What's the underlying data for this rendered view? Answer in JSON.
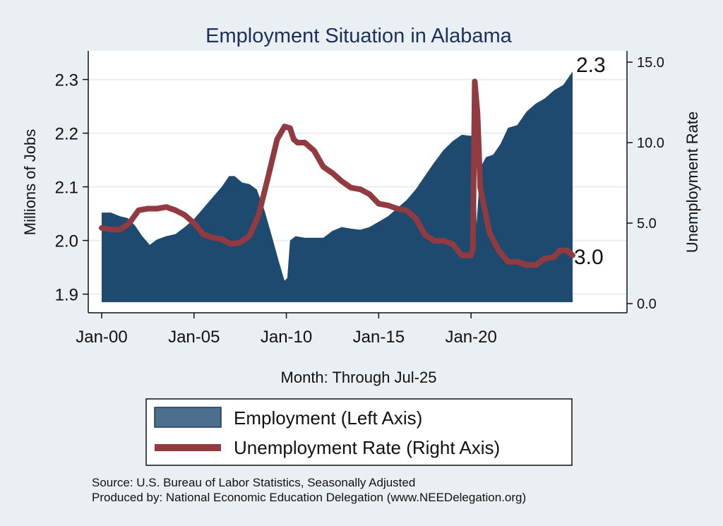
{
  "chart_data": {
    "type": "area+line",
    "title": "Employment Situation in Alabama",
    "xlabel": "Month: Through Jul-25",
    "ylabel_left": "Millions of Jobs",
    "ylabel_right": "Unemployment Rate",
    "x_ticks": [
      "Jan-00",
      "Jan-05",
      "Jan-10",
      "Jan-15",
      "Jan-20"
    ],
    "y_left_ticks": [
      "1.9",
      "2.0",
      "2.1",
      "2.2",
      "2.3"
    ],
    "y_right_ticks": [
      "0.0",
      "5.0",
      "10.0",
      "15.0"
    ],
    "ylim_left": [
      1.885,
      2.335
    ],
    "ylim_right": [
      0,
      15
    ],
    "x_start": 2000.0,
    "x_end": 2025.5,
    "employment_end_label": "2.3",
    "unemployment_end_label": "3.0",
    "legend_position": "bottom",
    "series": [
      {
        "name": "Employment (Left Axis)",
        "axis": "left",
        "kind": "area",
        "color": "#1f4a70",
        "points": [
          [
            2000.0,
            2.052
          ],
          [
            2000.5,
            2.052
          ],
          [
            2001.0,
            2.045
          ],
          [
            2001.4,
            2.042
          ],
          [
            2001.8,
            2.028
          ],
          [
            2002.2,
            2.008
          ],
          [
            2002.6,
            1.992
          ],
          [
            2003.0,
            2.002
          ],
          [
            2003.5,
            2.008
          ],
          [
            2004.0,
            2.012
          ],
          [
            2004.5,
            2.025
          ],
          [
            2005.0,
            2.04
          ],
          [
            2005.5,
            2.06
          ],
          [
            2006.0,
            2.08
          ],
          [
            2006.5,
            2.1
          ],
          [
            2006.9,
            2.12
          ],
          [
            2007.2,
            2.12
          ],
          [
            2007.6,
            2.108
          ],
          [
            2008.0,
            2.105
          ],
          [
            2008.4,
            2.095
          ],
          [
            2008.8,
            2.058
          ],
          [
            2009.2,
            2.01
          ],
          [
            2009.6,
            1.96
          ],
          [
            2009.9,
            1.925
          ],
          [
            2010.05,
            1.93
          ],
          [
            2010.2,
            2.0
          ],
          [
            2010.5,
            2.008
          ],
          [
            2011.0,
            2.005
          ],
          [
            2011.5,
            2.005
          ],
          [
            2012.0,
            2.005
          ],
          [
            2012.5,
            2.018
          ],
          [
            2013.0,
            2.025
          ],
          [
            2013.5,
            2.022
          ],
          [
            2014.0,
            2.02
          ],
          [
            2014.5,
            2.025
          ],
          [
            2015.0,
            2.035
          ],
          [
            2015.5,
            2.045
          ],
          [
            2016.0,
            2.06
          ],
          [
            2016.5,
            2.075
          ],
          [
            2017.0,
            2.095
          ],
          [
            2017.5,
            2.12
          ],
          [
            2018.0,
            2.145
          ],
          [
            2018.5,
            2.168
          ],
          [
            2019.0,
            2.185
          ],
          [
            2019.5,
            2.197
          ],
          [
            2020.0,
            2.195
          ],
          [
            2020.2,
            2.198
          ],
          [
            2020.3,
            2.03
          ],
          [
            2020.5,
            2.135
          ],
          [
            2020.8,
            2.155
          ],
          [
            2021.2,
            2.16
          ],
          [
            2021.6,
            2.18
          ],
          [
            2022.0,
            2.21
          ],
          [
            2022.5,
            2.215
          ],
          [
            2023.0,
            2.24
          ],
          [
            2023.5,
            2.255
          ],
          [
            2024.0,
            2.265
          ],
          [
            2024.5,
            2.28
          ],
          [
            2025.0,
            2.29
          ],
          [
            2025.3,
            2.305
          ],
          [
            2025.5,
            2.315
          ]
        ]
      },
      {
        "name": "Unemployment Rate (Right Axis)",
        "axis": "right",
        "kind": "line",
        "color": "#913a40",
        "points": [
          [
            2000.0,
            4.7
          ],
          [
            2000.5,
            4.6
          ],
          [
            2001.0,
            4.6
          ],
          [
            2001.5,
            5.0
          ],
          [
            2002.0,
            5.8
          ],
          [
            2002.5,
            5.9
          ],
          [
            2003.0,
            5.9
          ],
          [
            2003.5,
            6.0
          ],
          [
            2004.0,
            5.8
          ],
          [
            2004.5,
            5.5
          ],
          [
            2005.0,
            5.0
          ],
          [
            2005.5,
            4.3
          ],
          [
            2006.0,
            4.1
          ],
          [
            2006.5,
            4.0
          ],
          [
            2007.0,
            3.7
          ],
          [
            2007.5,
            3.8
          ],
          [
            2008.0,
            4.2
          ],
          [
            2008.5,
            5.5
          ],
          [
            2009.0,
            7.8
          ],
          [
            2009.5,
            10.2
          ],
          [
            2009.9,
            11.0
          ],
          [
            2010.2,
            10.9
          ],
          [
            2010.4,
            10.2
          ],
          [
            2010.6,
            10.0
          ],
          [
            2011.0,
            10.0
          ],
          [
            2011.5,
            9.5
          ],
          [
            2012.0,
            8.5
          ],
          [
            2012.5,
            8.1
          ],
          [
            2013.0,
            7.6
          ],
          [
            2013.5,
            7.2
          ],
          [
            2014.0,
            7.1
          ],
          [
            2014.5,
            6.8
          ],
          [
            2015.0,
            6.2
          ],
          [
            2015.5,
            6.1
          ],
          [
            2016.0,
            5.9
          ],
          [
            2016.5,
            5.8
          ],
          [
            2017.0,
            5.3
          ],
          [
            2017.5,
            4.3
          ],
          [
            2018.0,
            3.9
          ],
          [
            2018.5,
            3.9
          ],
          [
            2019.0,
            3.7
          ],
          [
            2019.5,
            3.0
          ],
          [
            2020.0,
            3.0
          ],
          [
            2020.1,
            3.4
          ],
          [
            2020.2,
            13.8
          ],
          [
            2020.35,
            11.8
          ],
          [
            2020.5,
            7.2
          ],
          [
            2021.0,
            4.4
          ],
          [
            2021.5,
            3.3
          ],
          [
            2022.0,
            2.6
          ],
          [
            2022.5,
            2.6
          ],
          [
            2023.0,
            2.4
          ],
          [
            2023.5,
            2.4
          ],
          [
            2024.0,
            2.8
          ],
          [
            2024.5,
            2.9
          ],
          [
            2024.8,
            3.3
          ],
          [
            2025.2,
            3.3
          ],
          [
            2025.5,
            3.0
          ]
        ]
      }
    ]
  },
  "source_line": "Source: U.S. Bureau of Labor Statistics, Seasonally Adjusted",
  "produced_line": "Produced by: National Economic Education Delegation (www.NEEDelegation.org)"
}
